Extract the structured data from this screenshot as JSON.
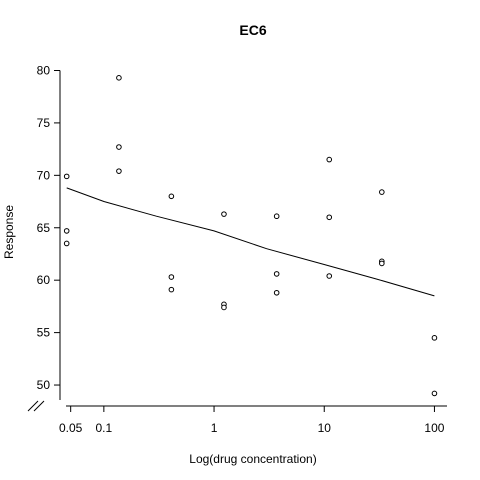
{
  "chart_data": {
    "type": "scatter",
    "title": "EC6",
    "xlabel": "Log(drug concentration)",
    "ylabel": "Response",
    "x_scale": "log",
    "xlim": [
      0.04,
      130
    ],
    "ylim": [
      48,
      81
    ],
    "x_ticks": [
      {
        "value": 0.05,
        "label": "0.05"
      },
      {
        "value": 0.1,
        "label": "0.1"
      },
      {
        "value": 1,
        "label": "1"
      },
      {
        "value": 10,
        "label": "10"
      },
      {
        "value": 100,
        "label": "100"
      }
    ],
    "y_ticks": [
      {
        "value": 50,
        "label": "50"
      },
      {
        "value": 55,
        "label": "55"
      },
      {
        "value": 60,
        "label": "60"
      },
      {
        "value": 65,
        "label": "65"
      },
      {
        "value": 70,
        "label": "70"
      },
      {
        "value": 75,
        "label": "75"
      },
      {
        "value": 80,
        "label": "80"
      }
    ],
    "axis_break": "x",
    "grid": false,
    "series": [
      {
        "type": "scatter",
        "marker": "open-circle",
        "points": [
          {
            "x": 0.046,
            "y": 69.9
          },
          {
            "x": 0.046,
            "y": 64.7
          },
          {
            "x": 0.046,
            "y": 63.5
          },
          {
            "x": 0.137,
            "y": 79.3
          },
          {
            "x": 0.137,
            "y": 72.7
          },
          {
            "x": 0.137,
            "y": 70.4
          },
          {
            "x": 0.41,
            "y": 68.0
          },
          {
            "x": 0.41,
            "y": 60.3
          },
          {
            "x": 0.41,
            "y": 59.1
          },
          {
            "x": 1.23,
            "y": 66.3
          },
          {
            "x": 1.23,
            "y": 57.7
          },
          {
            "x": 1.23,
            "y": 57.4
          },
          {
            "x": 3.7,
            "y": 66.1
          },
          {
            "x": 3.7,
            "y": 60.6
          },
          {
            "x": 3.7,
            "y": 58.8
          },
          {
            "x": 11.1,
            "y": 71.5
          },
          {
            "x": 11.1,
            "y": 66.0
          },
          {
            "x": 11.1,
            "y": 60.4
          },
          {
            "x": 33.3,
            "y": 68.4
          },
          {
            "x": 33.3,
            "y": 61.8
          },
          {
            "x": 33.3,
            "y": 61.6
          },
          {
            "x": 100,
            "y": 54.5
          },
          {
            "x": 100,
            "y": 49.2
          }
        ]
      },
      {
        "type": "line",
        "points": [
          {
            "x": 0.046,
            "y": 68.8
          },
          {
            "x": 0.1,
            "y": 67.5
          },
          {
            "x": 0.3,
            "y": 66.1
          },
          {
            "x": 1,
            "y": 64.7
          },
          {
            "x": 3,
            "y": 63.0
          },
          {
            "x": 10,
            "y": 61.5
          },
          {
            "x": 30,
            "y": 60.1
          },
          {
            "x": 100,
            "y": 58.5
          }
        ]
      }
    ]
  }
}
